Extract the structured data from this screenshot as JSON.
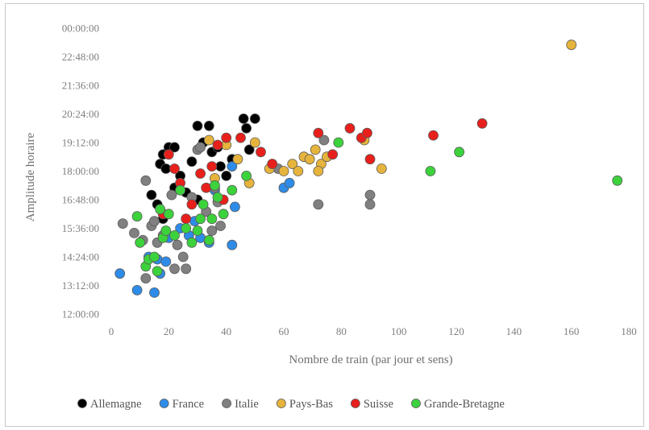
{
  "chart_data": {
    "type": "scatter",
    "title": "",
    "xlabel": "Nombre de train (par jour et sens)",
    "ylabel": "Amplitude horaire",
    "xlim": [
      0,
      180
    ],
    "ylim_hours": [
      12,
      24
    ],
    "x_ticks": [
      "0",
      "20",
      "40",
      "60",
      "80",
      "100",
      "120",
      "140",
      "160",
      "180"
    ],
    "y_ticks": [
      "12:00:00",
      "13:12:00",
      "14:24:00",
      "15:36:00",
      "16:48:00",
      "18:00:00",
      "19:12:00",
      "20:24:00",
      "21:36:00",
      "22:48:00",
      "00:00:00"
    ],
    "grid": "none",
    "legend_position": "bottom",
    "series": [
      {
        "name": "Allemagne",
        "color": "#000000",
        "points": [
          [
            17,
            18.3
          ],
          [
            18,
            18.7
          ],
          [
            19,
            18.1
          ],
          [
            20,
            19.0
          ],
          [
            22,
            19.0
          ],
          [
            24,
            17.8
          ],
          [
            26,
            17.1
          ],
          [
            28,
            18.4
          ],
          [
            30,
            19.9
          ],
          [
            32,
            19.2
          ],
          [
            34,
            19.9
          ],
          [
            35,
            18.8
          ],
          [
            37,
            19.0
          ],
          [
            38,
            18.2
          ],
          [
            40,
            17.8
          ],
          [
            42,
            18.5
          ],
          [
            46,
            20.2
          ],
          [
            47,
            19.8
          ],
          [
            48,
            18.9
          ],
          [
            50,
            20.2
          ],
          [
            14,
            17.0
          ],
          [
            16,
            16.6
          ],
          [
            18,
            16.0
          ],
          [
            22,
            17.3
          ],
          [
            30,
            16.8
          ]
        ]
      },
      {
        "name": "France",
        "color": "#2e8ce8",
        "points": [
          [
            3,
            13.7
          ],
          [
            9,
            13.0
          ],
          [
            13,
            14.4
          ],
          [
            15,
            12.9
          ],
          [
            16,
            14.3
          ],
          [
            17,
            13.7
          ],
          [
            19,
            14.2
          ],
          [
            20,
            15.2
          ],
          [
            24,
            15.6
          ],
          [
            27,
            15.3
          ],
          [
            29,
            15.9
          ],
          [
            31,
            15.2
          ],
          [
            34,
            15.0
          ],
          [
            36,
            17.2
          ],
          [
            42,
            18.2
          ],
          [
            43,
            16.5
          ],
          [
            42,
            14.9
          ],
          [
            60,
            17.3
          ],
          [
            62,
            17.5
          ]
        ]
      },
      {
        "name": "Italie",
        "color": "#808080",
        "points": [
          [
            4,
            15.8
          ],
          [
            8,
            15.4
          ],
          [
            11,
            15.1
          ],
          [
            12,
            13.5
          ],
          [
            12,
            17.6
          ],
          [
            14,
            15.7
          ],
          [
            15,
            15.9
          ],
          [
            16,
            15.0
          ],
          [
            18,
            15.3
          ],
          [
            21,
            17.0
          ],
          [
            22,
            13.9
          ],
          [
            23,
            14.9
          ],
          [
            25,
            14.4
          ],
          [
            26,
            13.9
          ],
          [
            28,
            16.9
          ],
          [
            30,
            18.9
          ],
          [
            31,
            19.0
          ],
          [
            33,
            16.3
          ],
          [
            35,
            15.5
          ],
          [
            36,
            17.3
          ],
          [
            37,
            16.7
          ],
          [
            38,
            15.7
          ],
          [
            56,
            18.3
          ],
          [
            58,
            18.1
          ],
          [
            72,
            16.6
          ],
          [
            74,
            19.3
          ],
          [
            90,
            16.6
          ],
          [
            90,
            17.0
          ]
        ]
      },
      {
        "name": "Pays-Bas",
        "color": "#e6b43c",
        "points": [
          [
            34,
            19.3
          ],
          [
            36,
            17.7
          ],
          [
            40,
            19.1
          ],
          [
            44,
            18.5
          ],
          [
            48,
            17.5
          ],
          [
            50,
            19.2
          ],
          [
            55,
            18.1
          ],
          [
            60,
            18.0
          ],
          [
            63,
            18.3
          ],
          [
            65,
            18.0
          ],
          [
            67,
            18.6
          ],
          [
            69,
            18.5
          ],
          [
            71,
            18.9
          ],
          [
            73,
            18.3
          ],
          [
            72,
            18.0
          ],
          [
            75,
            18.6
          ],
          [
            88,
            19.3
          ],
          [
            94,
            18.1
          ],
          [
            160,
            23.3
          ]
        ]
      },
      {
        "name": "Suisse",
        "color": "#e8201c",
        "points": [
          [
            18,
            16.2
          ],
          [
            20,
            18.7
          ],
          [
            22,
            18.1
          ],
          [
            24,
            17.5
          ],
          [
            26,
            16.0
          ],
          [
            28,
            16.6
          ],
          [
            31,
            17.9
          ],
          [
            33,
            17.3
          ],
          [
            35,
            18.2
          ],
          [
            37,
            19.1
          ],
          [
            39,
            16.8
          ],
          [
            40,
            19.4
          ],
          [
            45,
            19.4
          ],
          [
            52,
            18.8
          ],
          [
            56,
            18.3
          ],
          [
            72,
            19.6
          ],
          [
            77,
            18.7
          ],
          [
            83,
            19.8
          ],
          [
            87,
            19.4
          ],
          [
            89,
            19.6
          ],
          [
            90,
            18.5
          ],
          [
            112,
            19.5
          ],
          [
            129,
            20.0
          ]
        ]
      },
      {
        "name": "Grande-Bretagne",
        "color": "#3cd23c",
        "points": [
          [
            9,
            16.1
          ],
          [
            10,
            15.0
          ],
          [
            12,
            14.0
          ],
          [
            13,
            14.3
          ],
          [
            15,
            14.4
          ],
          [
            16,
            13.8
          ],
          [
            17,
            16.4
          ],
          [
            18,
            15.2
          ],
          [
            19,
            15.5
          ],
          [
            20,
            16.2
          ],
          [
            22,
            15.3
          ],
          [
            24,
            17.2
          ],
          [
            26,
            15.6
          ],
          [
            28,
            15.0
          ],
          [
            30,
            15.5
          ],
          [
            31,
            16.0
          ],
          [
            32,
            16.6
          ],
          [
            34,
            15.1
          ],
          [
            35,
            16.0
          ],
          [
            36,
            17.4
          ],
          [
            37,
            16.9
          ],
          [
            39,
            16.2
          ],
          [
            42,
            17.2
          ],
          [
            47,
            17.8
          ],
          [
            79,
            19.2
          ],
          [
            111,
            18.0
          ],
          [
            121,
            18.8
          ],
          [
            176,
            17.6
          ]
        ]
      }
    ]
  }
}
